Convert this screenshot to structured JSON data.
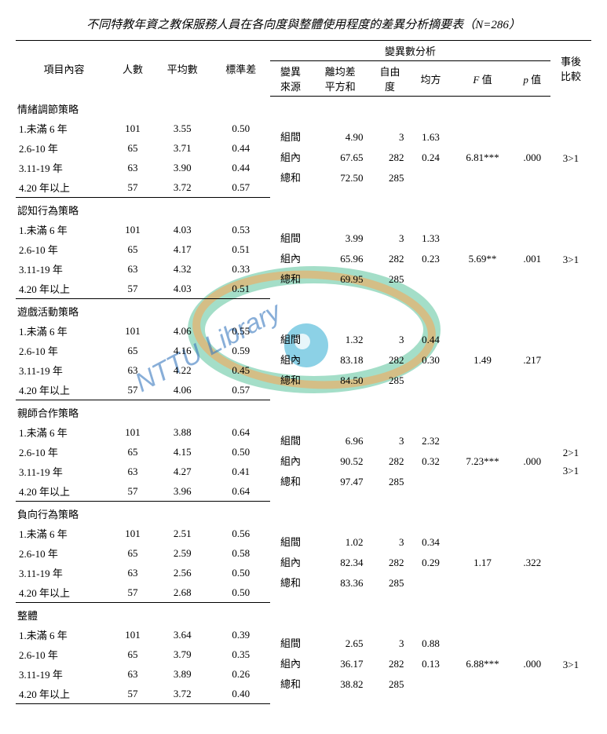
{
  "title_prefix": "不同特教年資之教保服務人員在各向度與整體使用程度的差異分析摘要表（",
  "title_n": "N",
  "title_suffix": "=286）",
  "headers": {
    "item": "項目內容",
    "n": "人數",
    "mean": "平均數",
    "sd": "標準差",
    "anova": "變異數分析",
    "source": "變異\n來源",
    "ss": "離均差\n平方和",
    "df": "自由\n度",
    "ms": "均方",
    "F": "F 值",
    "p": "p 值",
    "post": "事後\n比較"
  },
  "src": {
    "between": "組間",
    "within": "組內",
    "total": "總和"
  },
  "labels": [
    "1.未滿 6 年",
    "2.6-10 年",
    "3.11-19 年",
    "4.20 年以上"
  ],
  "sections": [
    {
      "name": "情緒調節策略",
      "rows": [
        [
          "101",
          "3.55",
          "0.50"
        ],
        [
          "65",
          "3.71",
          "0.44"
        ],
        [
          "63",
          "3.90",
          "0.44"
        ],
        [
          "57",
          "3.72",
          "0.57"
        ]
      ],
      "an": [
        [
          "4.90",
          "3",
          "1.63"
        ],
        [
          "67.65",
          "282",
          "0.24"
        ],
        [
          "72.50",
          "285",
          ""
        ]
      ],
      "F": "6.81***",
      "p": ".000",
      "post": [
        "3>1"
      ]
    },
    {
      "name": "認知行為策略",
      "rows": [
        [
          "101",
          "4.03",
          "0.53"
        ],
        [
          "65",
          "4.17",
          "0.51"
        ],
        [
          "63",
          "4.32",
          "0.33"
        ],
        [
          "57",
          "4.03",
          "0.51"
        ]
      ],
      "an": [
        [
          "3.99",
          "3",
          "1.33"
        ],
        [
          "65.96",
          "282",
          "0.23"
        ],
        [
          "69.95",
          "285",
          ""
        ]
      ],
      "F": "5.69**",
      "p": ".001",
      "post": [
        "3>1"
      ]
    },
    {
      "name": "遊戲活動策略",
      "rows": [
        [
          "101",
          "4.06",
          "0.55"
        ],
        [
          "65",
          "4.16",
          "0.59"
        ],
        [
          "63",
          "4.22",
          "0.45"
        ],
        [
          "57",
          "4.06",
          "0.57"
        ]
      ],
      "an": [
        [
          "1.32",
          "3",
          "0.44"
        ],
        [
          "83.18",
          "282",
          "0.30"
        ],
        [
          "84.50",
          "285",
          ""
        ]
      ],
      "F": "1.49",
      "p": ".217",
      "post": []
    },
    {
      "name": "親師合作策略",
      "rows": [
        [
          "101",
          "3.88",
          "0.64"
        ],
        [
          "65",
          "4.15",
          "0.50"
        ],
        [
          "63",
          "4.27",
          "0.41"
        ],
        [
          "57",
          "3.96",
          "0.64"
        ]
      ],
      "an": [
        [
          "6.96",
          "3",
          "2.32"
        ],
        [
          "90.52",
          "282",
          "0.32"
        ],
        [
          "97.47",
          "285",
          ""
        ]
      ],
      "F": "7.23***",
      "p": ".000",
      "post": [
        "2>1",
        "3>1"
      ]
    },
    {
      "name": "負向行為策略",
      "rows": [
        [
          "101",
          "2.51",
          "0.56"
        ],
        [
          "65",
          "2.59",
          "0.58"
        ],
        [
          "63",
          "2.56",
          "0.50"
        ],
        [
          "57",
          "2.68",
          "0.50"
        ]
      ],
      "an": [
        [
          "1.02",
          "3",
          "0.34"
        ],
        [
          "82.34",
          "282",
          "0.29"
        ],
        [
          "83.36",
          "285",
          ""
        ]
      ],
      "F": "1.17",
      "p": ".322",
      "post": []
    },
    {
      "name": "整體",
      "rows": [
        [
          "101",
          "3.64",
          "0.39"
        ],
        [
          "65",
          "3.79",
          "0.35"
        ],
        [
          "63",
          "3.89",
          "0.26"
        ],
        [
          "57",
          "3.72",
          "0.40"
        ]
      ],
      "an": [
        [
          "2.65",
          "3",
          "0.88"
        ],
        [
          "36.17",
          "282",
          "0.13"
        ],
        [
          "38.82",
          "285",
          ""
        ]
      ],
      "F": "6.88***",
      "p": ".000",
      "post": [
        "3>1"
      ]
    }
  ]
}
